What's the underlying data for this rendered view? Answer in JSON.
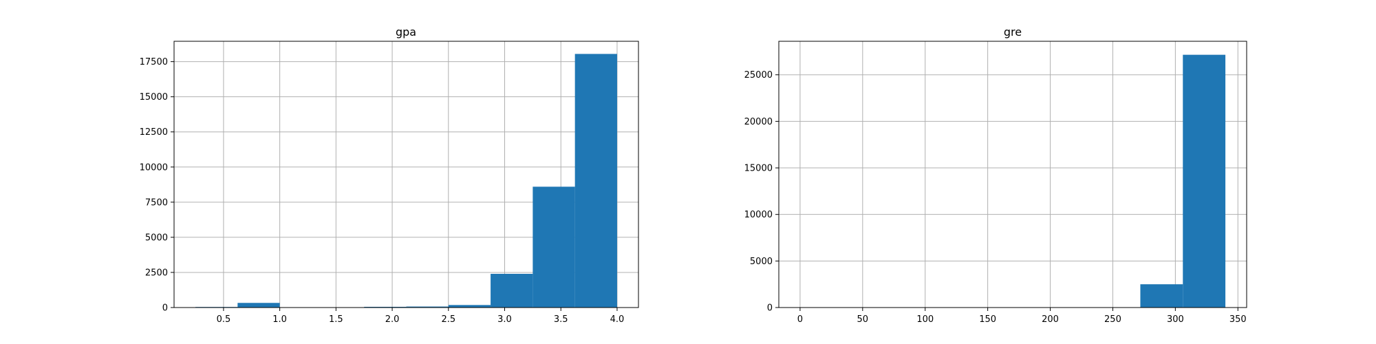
{
  "chart_data": [
    {
      "type": "bar",
      "subtype": "histogram",
      "title": "gpa",
      "xlabel": "",
      "ylabel": "",
      "bin_edges": [
        0.25,
        0.625,
        1.0,
        1.375,
        1.75,
        2.125,
        2.5,
        2.875,
        3.25,
        3.625,
        4.0
      ],
      "values": [
        40,
        330,
        5,
        5,
        50,
        70,
        180,
        2400,
        8600,
        18050
      ],
      "xlim": [
        0.06,
        4.19
      ],
      "ylim": [
        0,
        18950
      ],
      "xticks": [
        0.5,
        1.0,
        1.5,
        2.0,
        2.5,
        3.0,
        3.5,
        4.0
      ],
      "xtick_labels": [
        "0.5",
        "1.0",
        "1.5",
        "2.0",
        "2.5",
        "3.0",
        "3.5",
        "4.0"
      ],
      "yticks": [
        0,
        2500,
        5000,
        7500,
        10000,
        12500,
        15000,
        17500
      ],
      "ytick_labels": [
        "0",
        "2500",
        "5000",
        "7500",
        "10000",
        "12500",
        "15000",
        "17500"
      ],
      "grid": true,
      "bar_color": "#1f77b4"
    },
    {
      "type": "bar",
      "subtype": "histogram",
      "title": "gre",
      "xlabel": "",
      "ylabel": "",
      "bin_edges": [
        0,
        34,
        68,
        102,
        136,
        170,
        204,
        238,
        272,
        306,
        340
      ],
      "values": [
        0,
        0,
        0,
        0,
        0,
        0,
        0,
        0,
        2500,
        27150
      ],
      "xlim": [
        -17,
        357
      ],
      "ylim": [
        0,
        28600
      ],
      "xticks": [
        0,
        50,
        100,
        150,
        200,
        250,
        300,
        350
      ],
      "xtick_labels": [
        "0",
        "50",
        "100",
        "150",
        "200",
        "250",
        "300",
        "350"
      ],
      "yticks": [
        0,
        5000,
        10000,
        15000,
        20000,
        25000
      ],
      "ytick_labels": [
        "0",
        "5000",
        "10000",
        "15000",
        "20000",
        "25000"
      ],
      "grid": true,
      "bar_color": "#1f77b4"
    }
  ]
}
